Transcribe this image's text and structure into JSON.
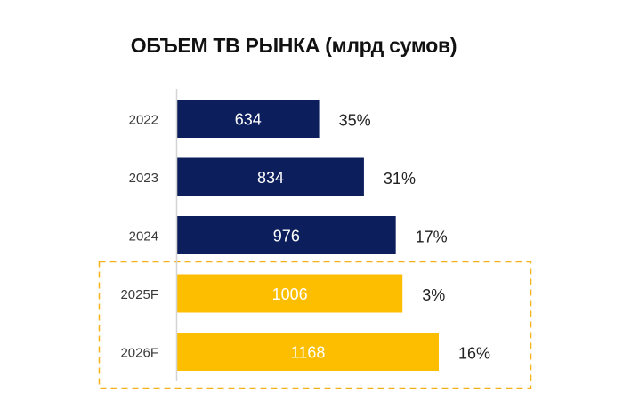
{
  "chart_data": {
    "type": "bar",
    "orientation": "horizontal",
    "title": "ОБЪЕМ ТВ РЫНКА (млрд сумов)",
    "categories": [
      "2022",
      "2023",
      "2024",
      "2025F",
      "2026F"
    ],
    "values": [
      634,
      834,
      976,
      1006,
      1168
    ],
    "growth_labels": [
      "35%",
      "31%",
      "17%",
      "3%",
      "16%"
    ],
    "forecast": [
      false,
      false,
      false,
      true,
      true
    ],
    "xlim": [
      0,
      1168
    ],
    "grid": false,
    "legend": "none",
    "colors": {
      "actual": "#0c1f5c",
      "forecast": "#fdbe00",
      "forecast_box": "#f5b21b"
    }
  }
}
